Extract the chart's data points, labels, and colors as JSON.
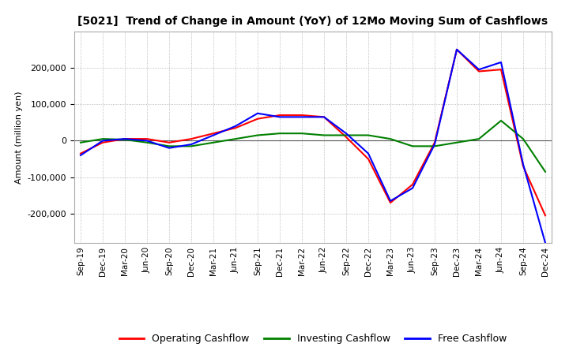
{
  "title": "[5021]  Trend of Change in Amount (YoY) of 12Mo Moving Sum of Cashflows",
  "ylabel": "Amount (million yen)",
  "ylim": [
    -280000,
    300000
  ],
  "yticks": [
    -200000,
    -100000,
    0,
    100000,
    200000
  ],
  "legend": [
    "Operating Cashflow",
    "Investing Cashflow",
    "Free Cashflow"
  ],
  "legend_colors": [
    "#ff0000",
    "#008000",
    "#0000ff"
  ],
  "x_labels": [
    "Sep-19",
    "Dec-19",
    "Mar-20",
    "Jun-20",
    "Sep-20",
    "Dec-20",
    "Mar-21",
    "Jun-21",
    "Sep-21",
    "Dec-21",
    "Mar-22",
    "Jun-22",
    "Sep-22",
    "Dec-22",
    "Mar-23",
    "Jun-23",
    "Sep-23",
    "Dec-23",
    "Mar-24",
    "Jun-24",
    "Sep-24",
    "Dec-24"
  ],
  "operating": [
    -35000,
    -5000,
    5000,
    5000,
    -5000,
    5000,
    20000,
    35000,
    60000,
    70000,
    70000,
    65000,
    10000,
    -50000,
    -170000,
    -120000,
    -5000,
    250000,
    190000,
    195000,
    -70000,
    -205000
  ],
  "investing": [
    -5000,
    5000,
    3000,
    -5000,
    -15000,
    -15000,
    -5000,
    5000,
    15000,
    20000,
    20000,
    15000,
    15000,
    15000,
    5000,
    -15000,
    -15000,
    -5000,
    5000,
    55000,
    5000,
    -85000
  ],
  "free": [
    -40000,
    0,
    5000,
    0,
    -20000,
    -10000,
    15000,
    40000,
    75000,
    65000,
    65000,
    65000,
    20000,
    -35000,
    -165000,
    -130000,
    -10000,
    250000,
    195000,
    215000,
    -65000,
    -280000
  ],
  "background_color": "#ffffff",
  "grid_color": "#aaaaaa"
}
